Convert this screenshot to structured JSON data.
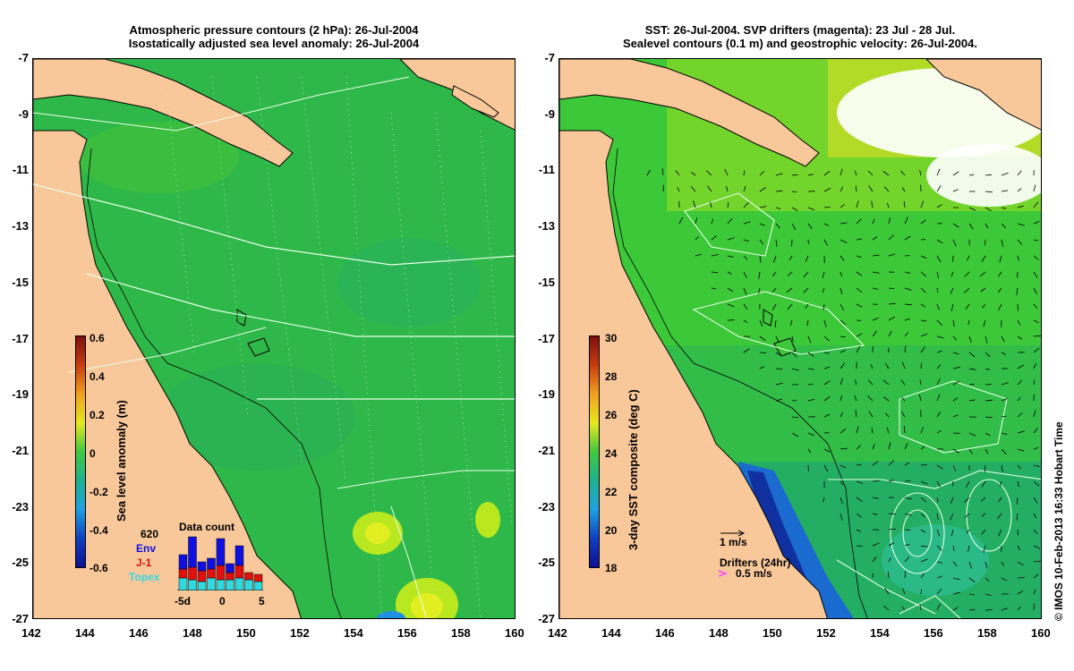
{
  "left_panel": {
    "title_line1": "Atmospheric pressure contours (2 hPa): 26-Jul-2004",
    "title_line2": "Isostatically adjusted sea level anomaly: 26-Jul-2004",
    "colorbar": {
      "label": "Sea level anomaly (m)",
      "ticks": [
        "0.6",
        "0.4",
        "0.2",
        "0",
        "-0.2",
        "-0.4",
        "-0.6"
      ]
    },
    "inset": {
      "count": "620",
      "title": "Data count",
      "legend": [
        {
          "label": "Env",
          "color": "#1010e0"
        },
        {
          "label": "J-1",
          "color": "#e01010"
        },
        {
          "label": "Topex",
          "color": "#30d8e0"
        }
      ],
      "x_ticks": [
        "-5d",
        "0",
        "5"
      ]
    }
  },
  "right_panel": {
    "title_line1": "SST: 26-Jul-2004. SVP drifters (magenta): 23 Jul - 28 Jul.",
    "title_line2": "Sealevel contours (0.1 m) and geostrophic velocity: 26-Jul-2004.",
    "colorbar": {
      "label": "3-day SST composite (deg C)",
      "ticks": [
        "30",
        "28",
        "26",
        "24",
        "22",
        "20",
        "18"
      ]
    },
    "velocity_legend": "1 m/s",
    "drifter_legend_title": "Drifters (24hr)",
    "drifter_legend_speed": "0.5 m/s"
  },
  "axes": {
    "x_ticks": [
      "142",
      "144",
      "146",
      "148",
      "150",
      "152",
      "154",
      "156",
      "158",
      "160"
    ],
    "y_ticks": [
      "-7",
      "-9",
      "-11",
      "-13",
      "-15",
      "-17",
      "-19",
      "-21",
      "-23",
      "-25",
      "-27"
    ]
  },
  "copyright": "© IMOS 10-Feb-2013 16:33 Hobart Time",
  "colors": {
    "land": "#f8c89a",
    "sla_base": "#2fb84a",
    "sst_base": "#3cc838",
    "drifter": "#ff44ff"
  }
}
